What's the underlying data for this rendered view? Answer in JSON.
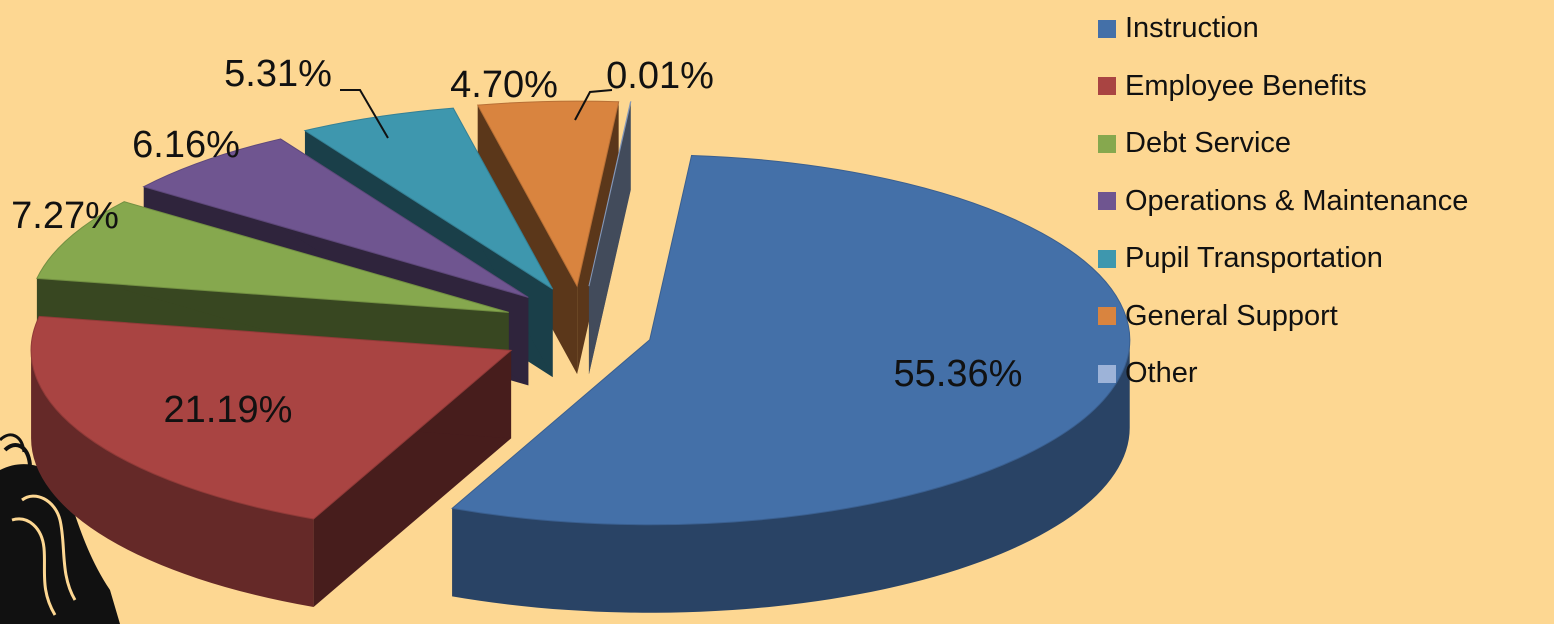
{
  "chart_data": {
    "type": "pie",
    "style": "3d-exploded",
    "legend_position": "right",
    "categories": [
      "Instruction",
      "Employee Benefits",
      "Debt Service",
      "Operations & Maintenance",
      "Pupil Transportation",
      "General Support",
      "Other"
    ],
    "values": [
      55.36,
      21.19,
      7.27,
      6.16,
      5.31,
      4.7,
      0.01
    ],
    "labels": [
      "55.36%",
      "21.19%",
      "7.27%",
      "6.16%",
      "5.31%",
      "4.70%",
      "0.01%"
    ],
    "colors": [
      "#4470A8",
      "#A94442",
      "#86A84E",
      "#6F5590",
      "#3E97AE",
      "#D9843F",
      "#9DB3D8"
    ]
  },
  "decoration": {
    "icon": "feather-mascot-icon"
  }
}
